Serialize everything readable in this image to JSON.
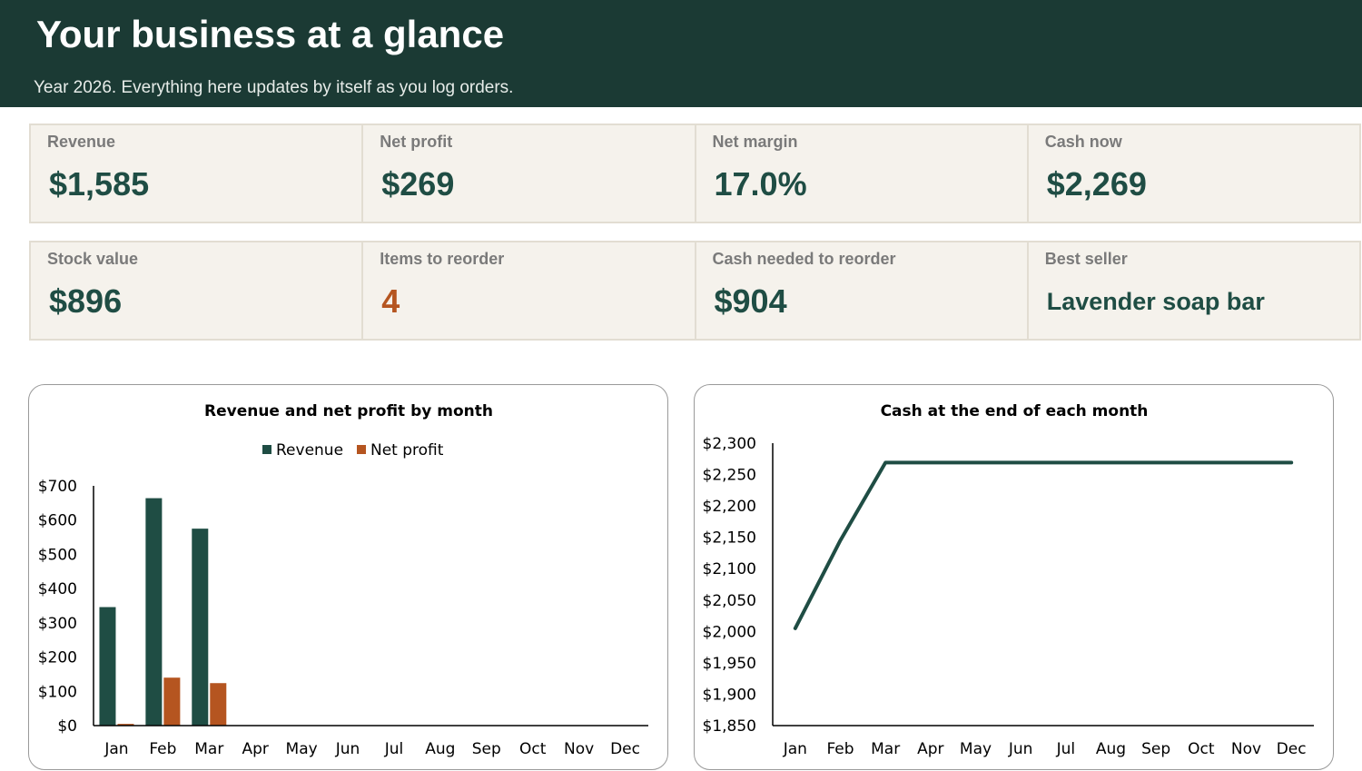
{
  "header": {
    "title": "Your business at a glance",
    "subtitle": "Year 2026. Everything here updates by itself as you log orders."
  },
  "kpis": {
    "revenue": {
      "label": "Revenue",
      "value": "$1,585"
    },
    "net_profit": {
      "label": "Net profit",
      "value": "$269"
    },
    "net_margin": {
      "label": "Net margin",
      "value": "17.0%"
    },
    "cash_now": {
      "label": "Cash now",
      "value": "$2,269"
    },
    "stock_value": {
      "label": "Stock value",
      "value": "$896"
    },
    "items_to_reorder": {
      "label": "Items to reorder",
      "value": "4"
    },
    "cash_to_reorder": {
      "label": "Cash needed to reorder",
      "value": "$904"
    },
    "best_seller": {
      "label": "Best seller",
      "value": "Lavender soap bar"
    }
  },
  "colors": {
    "header_bg": "#1b3a34",
    "accent_green": "#1f4d44",
    "accent_orange": "#b55520",
    "card_bg": "#f5f2ec"
  },
  "chart_data": [
    {
      "type": "bar",
      "title": "Revenue and net profit by month",
      "legend_position": "top",
      "categories": [
        "Jan",
        "Feb",
        "Mar",
        "Apr",
        "May",
        "Jun",
        "Jul",
        "Aug",
        "Sep",
        "Oct",
        "Nov",
        "Dec"
      ],
      "series": [
        {
          "name": "Revenue",
          "color": "#1f4d44",
          "values": [
            346,
            664,
            575,
            0,
            0,
            0,
            0,
            0,
            0,
            0,
            0,
            0
          ]
        },
        {
          "name": "Net profit",
          "color": "#b55520",
          "values": [
            5,
            140,
            124,
            0,
            0,
            0,
            0,
            0,
            0,
            0,
            0,
            0
          ]
        }
      ],
      "ylim": [
        0,
        700
      ],
      "yticks": [
        "$0",
        "$100",
        "$200",
        "$300",
        "$400",
        "$500",
        "$600",
        "$700"
      ],
      "ytick_values": [
        0,
        100,
        200,
        300,
        400,
        500,
        600,
        700
      ],
      "grid": false
    },
    {
      "type": "line",
      "title": "Cash at the end of each month",
      "categories": [
        "Jan",
        "Feb",
        "Mar",
        "Apr",
        "May",
        "Jun",
        "Jul",
        "Aug",
        "Sep",
        "Oct",
        "Nov",
        "Dec"
      ],
      "series": [
        {
          "color": "#1f4d44",
          "values": [
            2005,
            2145,
            2269,
            2269,
            2269,
            2269,
            2269,
            2269,
            2269,
            2269,
            2269,
            2269
          ]
        }
      ],
      "ylim": [
        1850,
        2300
      ],
      "yticks": [
        "$1,850",
        "$1,900",
        "$1,950",
        "$2,000",
        "$2,050",
        "$2,100",
        "$2,150",
        "$2,200",
        "$2,250",
        "$2,300"
      ],
      "ytick_values": [
        1850,
        1900,
        1950,
        2000,
        2050,
        2100,
        2150,
        2200,
        2250,
        2300
      ],
      "grid": false
    }
  ]
}
